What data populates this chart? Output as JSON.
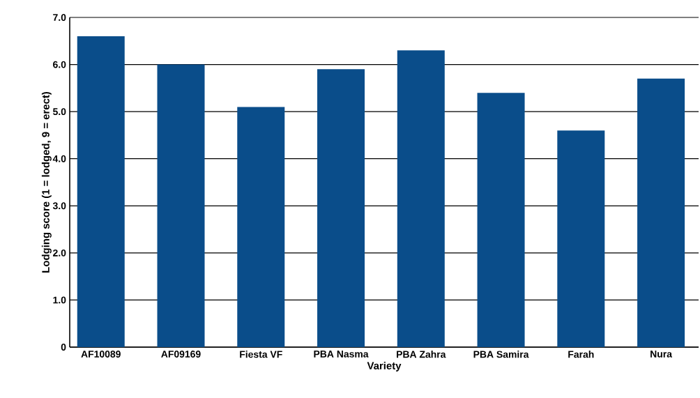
{
  "chart_data": {
    "type": "bar",
    "xlabel": "Variety",
    "ylabel": "Lodging score (1 = lodged, 9 = erect)",
    "categories": [
      "AF10089",
      "AF09169",
      "Fiesta VF",
      "PBA Nasma",
      "PBA Zahra",
      "PBA Samira",
      "Farah",
      "Nura"
    ],
    "values": [
      6.6,
      6.0,
      5.1,
      5.9,
      6.3,
      5.4,
      4.6,
      5.7
    ],
    "color": "#0a4d8a",
    "ylim": [
      0,
      7
    ],
    "yticks": [
      0,
      {
        "value": 1,
        "label": "1.0"
      },
      {
        "value": 2,
        "label": "2.0"
      },
      {
        "value": 3,
        "label": "3.0"
      },
      {
        "value": 4,
        "label": "4.0"
      },
      {
        "value": 5,
        "label": "5.0"
      },
      {
        "value": 6,
        "label": "6.0"
      },
      {
        "value": 7,
        "label": "7.0"
      }
    ],
    "grid": "y"
  }
}
